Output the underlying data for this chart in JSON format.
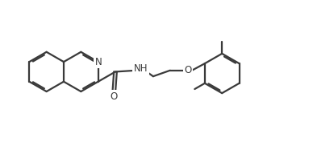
{
  "background_color": "#ffffff",
  "line_color": "#3a3a3a",
  "line_width": 1.6,
  "font_size": 8.5,
  "figsize": [
    3.88,
    1.92
  ],
  "dpi": 100,
  "xlim": [
    0.0,
    10.5
  ],
  "ylim": [
    -2.8,
    3.0
  ]
}
